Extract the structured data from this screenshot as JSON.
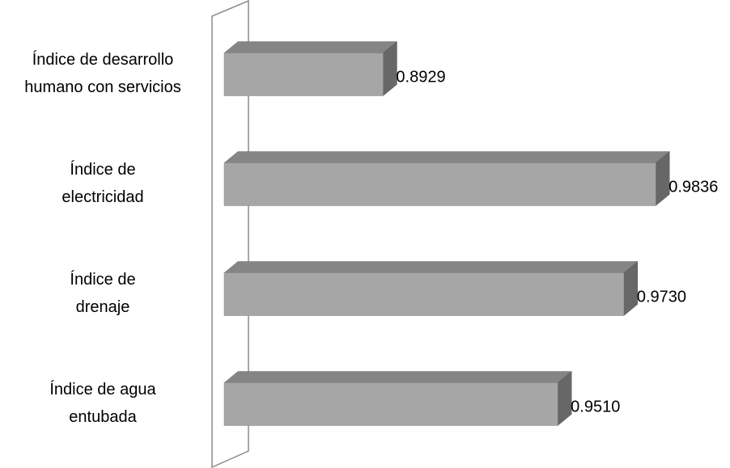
{
  "chart_data": {
    "type": "bar",
    "orientation": "horizontal",
    "three_d": true,
    "categories": [
      [
        "Índice de desarrollo",
        "humano con servicios"
      ],
      [
        "Índice de",
        "electricidad"
      ],
      [
        "Índice de",
        "drenaje"
      ],
      [
        "Índice de agua",
        "entubada"
      ]
    ],
    "values": [
      0.8929,
      0.9836,
      0.973,
      0.951
    ],
    "value_labels": [
      "0.8929",
      "0.9836",
      "0.9730",
      "0.9510"
    ],
    "color": "#a6a6a6",
    "xlim": [
      0.84,
      0.99
    ]
  }
}
